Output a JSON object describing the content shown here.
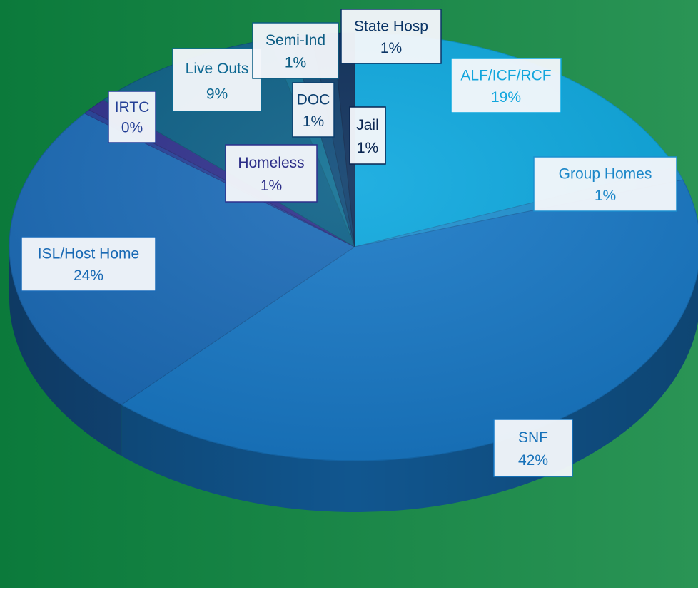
{
  "chart_data": {
    "type": "pie",
    "style": "3d",
    "title": "",
    "slices": [
      {
        "label": "ALF/ICF/RCF",
        "value": 19,
        "display": "19%",
        "color": "#0aa7de",
        "label_color": "#12a6dd",
        "border_color": "#0aa7de"
      },
      {
        "label": "Group Homes",
        "value": 1,
        "display": "1%",
        "color": "#1b8fd0",
        "label_color": "#1a86c8",
        "border_color": "#1b8fd0"
      },
      {
        "label": "SNF",
        "value": 42,
        "display": "42%",
        "color": "#1778c6",
        "label_color": "#1671b9",
        "border_color": "#1778c6"
      },
      {
        "label": "ISL/Host Home",
        "value": 24,
        "display": "24%",
        "color": "#1a6bb8",
        "label_color": "#1869b4",
        "border_color": "#1a6bb8"
      },
      {
        "label": "IRTC",
        "value": 0,
        "display": "0%",
        "color": "#24409a",
        "label_color": "#233f96",
        "border_color": "#24409a"
      },
      {
        "label": "Homeless",
        "value": 1,
        "display": "1%",
        "color": "#2e2f8c",
        "label_color": "#2c2e88",
        "border_color": "#2e2f8c"
      },
      {
        "label": "Live Outs",
        "value": 9,
        "display": "9%",
        "color": "#0a5f86",
        "label_color": "#0d6892",
        "border_color": "#0c6a93"
      },
      {
        "label": "Semi-Ind",
        "value": 1,
        "display": "1%",
        "color": "#0d6e92",
        "label_color": "#0c5d83",
        "border_color": "#0c5d83"
      },
      {
        "label": "DOC",
        "value": 1,
        "display": "1%",
        "color": "#0c4a78",
        "label_color": "#0c3f6e",
        "border_color": "#0c3f6e"
      },
      {
        "label": "State Hosp",
        "value": 1,
        "display": "1%",
        "color": "#0b3c6a",
        "label_color": "#0b3566",
        "border_color": "#0b3566"
      },
      {
        "label": "Jail",
        "value": 1,
        "display": "1%",
        "color": "#0a2c58",
        "label_color": "#0a2550",
        "border_color": "#0a2550"
      }
    ]
  },
  "colors": {
    "background_left": "#0b7a3b",
    "background_right": "#2a9455",
    "pie_side": "#14609f"
  }
}
